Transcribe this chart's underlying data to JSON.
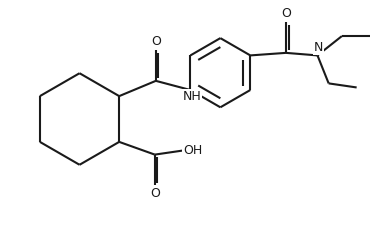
{
  "bg_color": "#ffffff",
  "line_color": "#1a1a1a",
  "line_width": 1.5,
  "font_size": 9,
  "figsize": [
    3.88,
    2.38
  ],
  "dpi": 100,
  "xlim": [
    0.0,
    7.6
  ],
  "ylim": [
    0.5,
    5.0
  ]
}
